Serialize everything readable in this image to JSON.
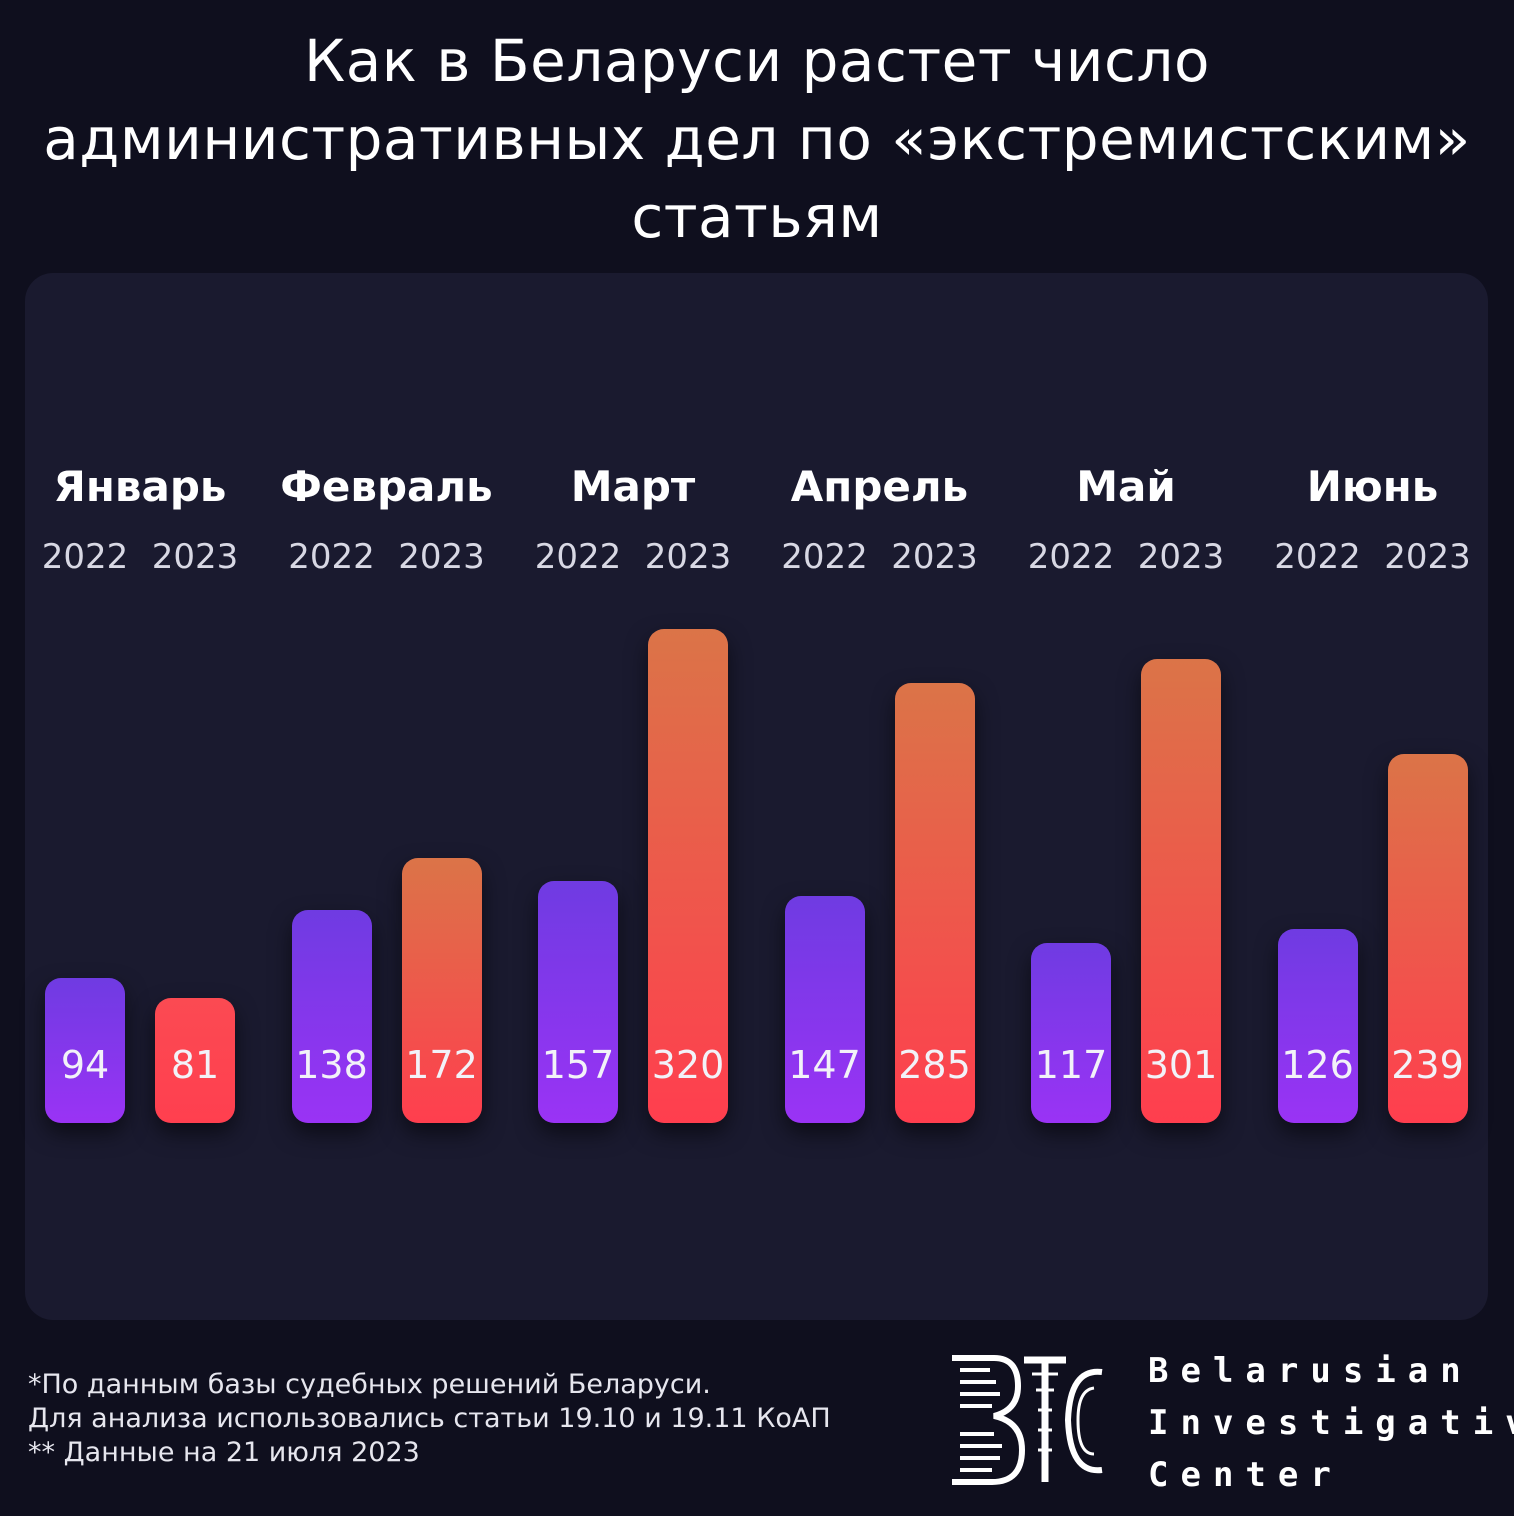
{
  "title_lines": [
    "Как в Беларуси растет число",
    "административных дел по «экстремистским»",
    "статьям"
  ],
  "chart_data": {
    "type": "bar",
    "categories": [
      "Январь",
      "Февраль",
      "Март",
      "Апрель",
      "Май",
      "Июнь"
    ],
    "series": [
      {
        "name": "2022",
        "values": [
          94,
          138,
          157,
          147,
          117,
          126
        ]
      },
      {
        "name": "2023",
        "values": [
          81,
          172,
          320,
          285,
          301,
          239
        ]
      }
    ],
    "year_labels": [
      "2022",
      "2023"
    ],
    "colors": {
      "2022": "#8a35ef",
      "2023": "#f2554d"
    }
  },
  "footnote": [
    "*По данным базы судебных решений Беларуси.",
    "Для анализа использовались статьи 19.10 и 19.11 КоАП",
    "** Данные на 21 июля 2023"
  ],
  "logo": {
    "mark_text": "BIC",
    "lines": [
      "Belarusian",
      "Investigative",
      "Center"
    ]
  }
}
